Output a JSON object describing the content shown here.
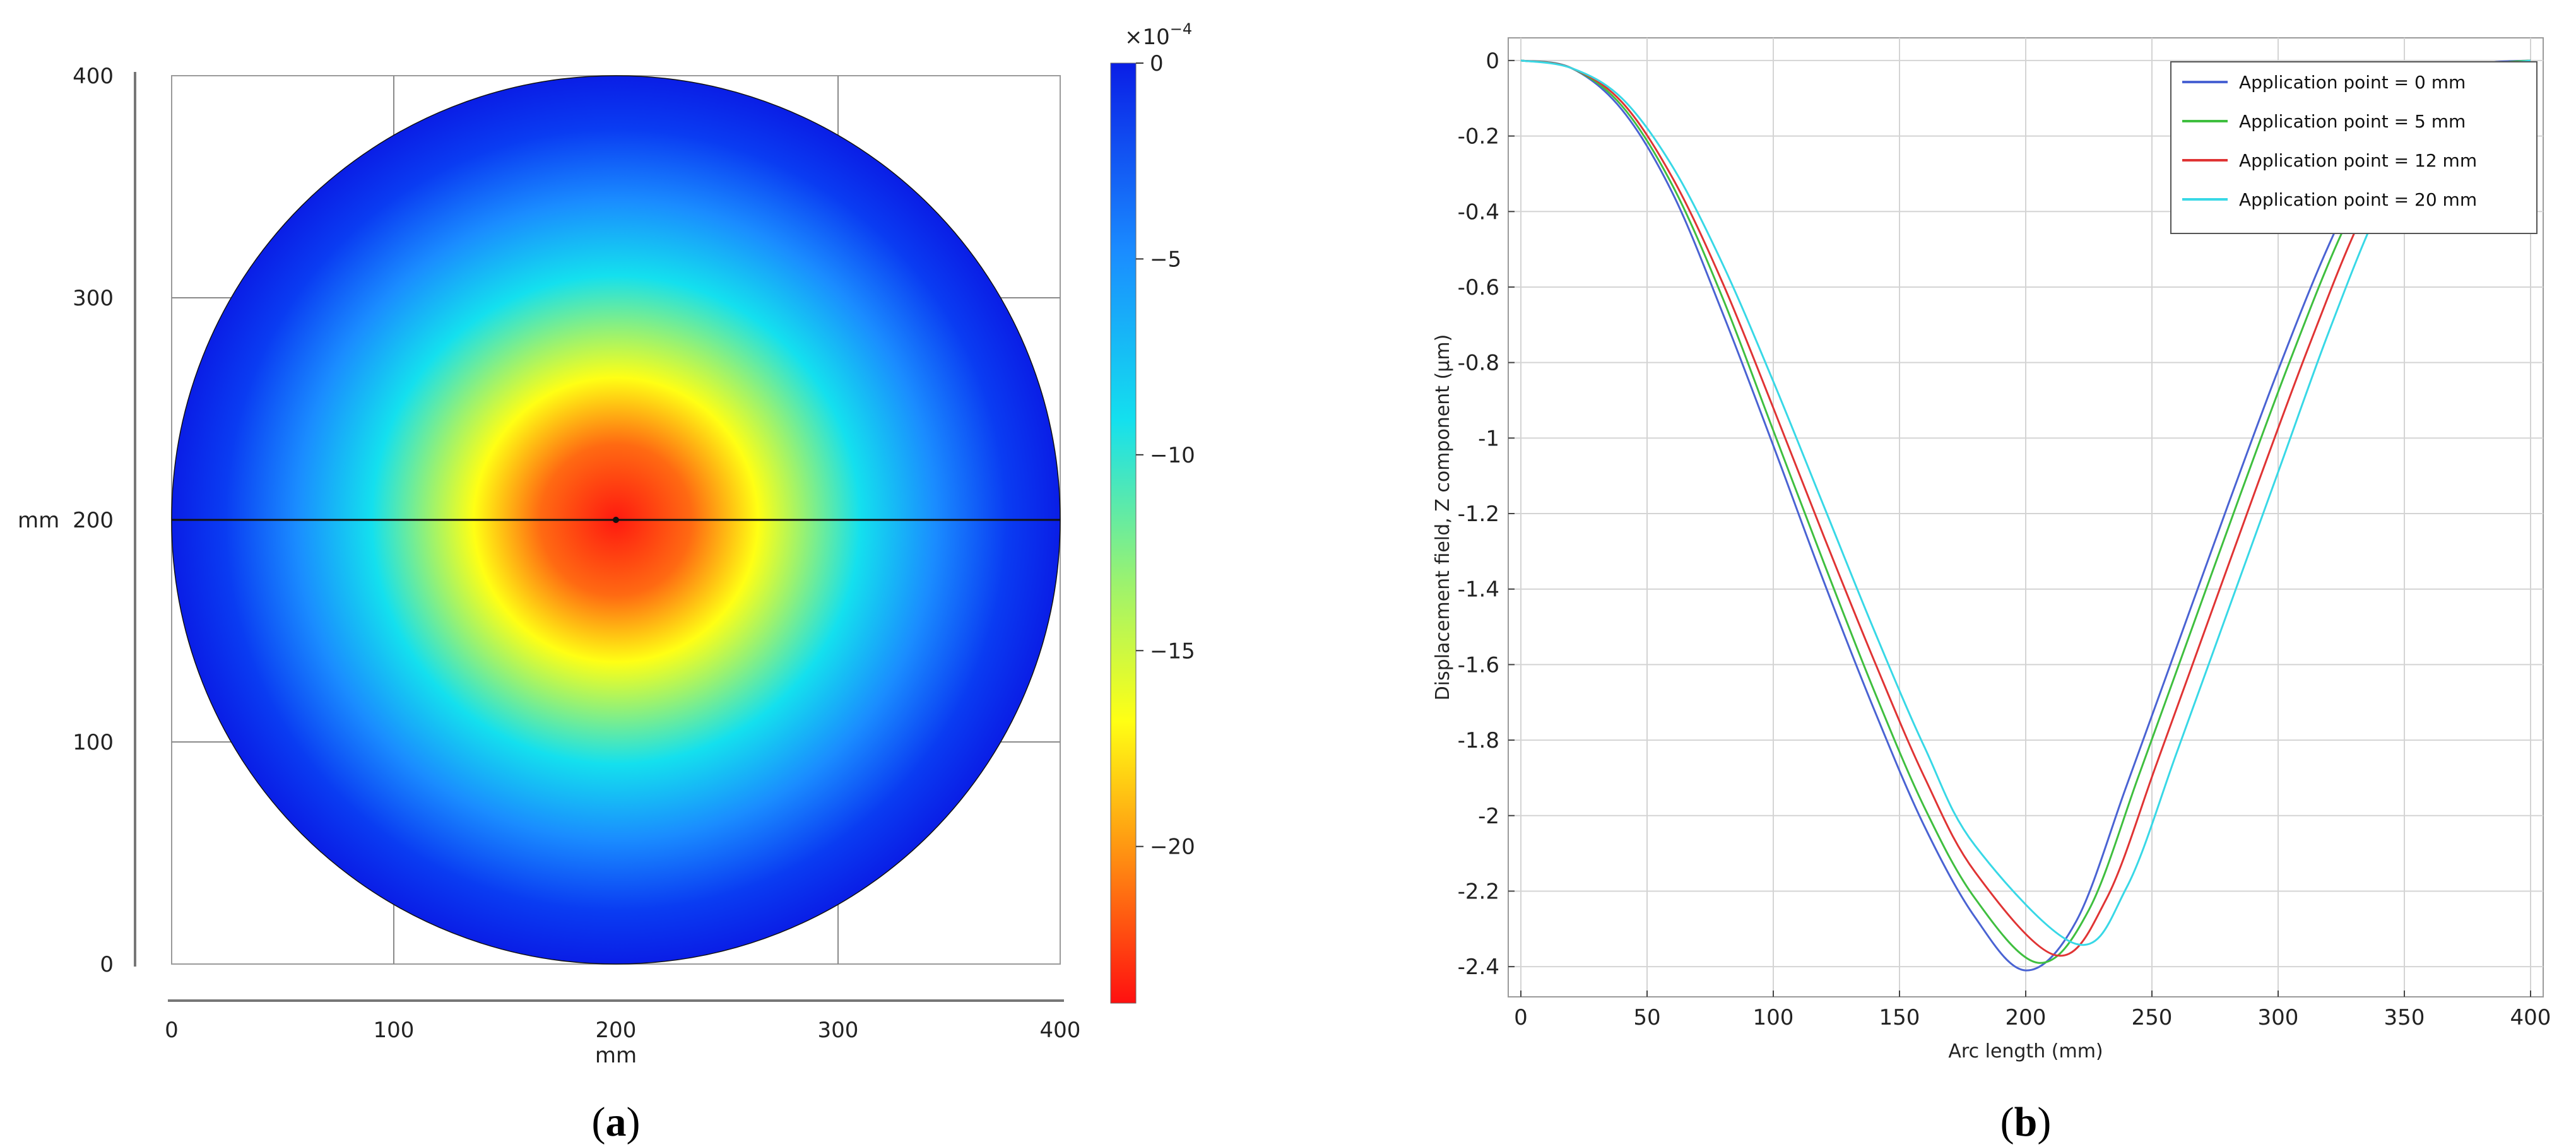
{
  "chart_data": [
    {
      "panel": "(a)",
      "type": "heatmap",
      "xlabel": "mm",
      "ylabel": "mm",
      "xlim": [
        0,
        400
      ],
      "ylim": [
        0,
        400
      ],
      "x_ticks": [
        "0",
        "100",
        "200",
        "300",
        "400"
      ],
      "y_ticks": [
        "0",
        "100",
        "200",
        "300",
        "400"
      ],
      "colorbar": {
        "multiplier": "×10",
        "exponent": "−4",
        "range": [
          -24,
          0
        ],
        "ticks": [
          {
            "value": 0,
            "label": "0"
          },
          {
            "value": -5,
            "label": "−5"
          },
          {
            "value": -10,
            "label": "−10"
          },
          {
            "value": -15,
            "label": "−15"
          },
          {
            "value": -20,
            "label": "−20"
          }
        ]
      },
      "field": {
        "shape": "circle",
        "center": [
          200,
          200
        ],
        "radius": 200,
        "center_value": -24,
        "edge_value": 0
      },
      "cut_line": {
        "y": 200,
        "x_range": [
          0,
          400
        ]
      },
      "grid": true
    },
    {
      "panel": "(b)",
      "type": "line",
      "xlabel": "Arc length (mm)",
      "ylabel": "Displacement field, Z component (µm)",
      "xlim": [
        -5,
        405
      ],
      "ylim": [
        -2.48,
        0.06
      ],
      "x_ticks": [
        {
          "value": 0,
          "label": "0"
        },
        {
          "value": 50,
          "label": "50"
        },
        {
          "value": 100,
          "label": "100"
        },
        {
          "value": 150,
          "label": "150"
        },
        {
          "value": 200,
          "label": "200"
        },
        {
          "value": 250,
          "label": "250"
        },
        {
          "value": 300,
          "label": "300"
        },
        {
          "value": 350,
          "label": "350"
        },
        {
          "value": 400,
          "label": "400"
        }
      ],
      "y_ticks": [
        {
          "value": 0,
          "label": "0"
        },
        {
          "value": -0.2,
          "label": "-0.2"
        },
        {
          "value": -0.4,
          "label": "-0.4"
        },
        {
          "value": -0.6,
          "label": "-0.6"
        },
        {
          "value": -0.8,
          "label": "-0.8"
        },
        {
          "value": -1,
          "label": "-1"
        },
        {
          "value": -1.2,
          "label": "-1.2"
        },
        {
          "value": -1.4,
          "label": "-1.4"
        },
        {
          "value": -1.6,
          "label": "-1.6"
        },
        {
          "value": -1.8,
          "label": "-1.8"
        },
        {
          "value": -2,
          "label": "-2"
        },
        {
          "value": -2.2,
          "label": "-2.2"
        },
        {
          "value": -2.4,
          "label": "-2.4"
        }
      ],
      "grid": true,
      "legend_position": "top-right",
      "series": [
        {
          "name": "Application point = 0 mm",
          "color": "#4a63d3",
          "min_x": 200,
          "min_y": -2.41,
          "x": [
            0,
            20,
            40,
            60,
            80,
            100,
            120,
            140,
            160,
            180,
            200,
            220,
            240,
            260,
            280,
            300,
            320,
            340,
            360,
            380,
            400
          ],
          "y": [
            0,
            -0.02,
            -0.13,
            -0.35,
            -0.67,
            -1.02,
            -1.38,
            -1.72,
            -2.03,
            -2.27,
            -2.41,
            -2.28,
            -1.92,
            -1.55,
            -1.18,
            -0.82,
            -0.49,
            -0.22,
            -0.06,
            -0.01,
            0
          ]
        },
        {
          "name": "Application point = 5 mm",
          "color": "#3fbf3f",
          "min_x": 205,
          "min_y": -2.39,
          "x": [
            0,
            20,
            40,
            60,
            80,
            100,
            120,
            140,
            160,
            180,
            205,
            225,
            245,
            265,
            285,
            305,
            325,
            345,
            365,
            385,
            400
          ],
          "y": [
            0,
            -0.02,
            -0.12,
            -0.33,
            -0.63,
            -0.98,
            -1.33,
            -1.67,
            -1.98,
            -2.22,
            -2.39,
            -2.25,
            -1.89,
            -1.52,
            -1.15,
            -0.79,
            -0.46,
            -0.2,
            -0.05,
            -0.01,
            0
          ]
        },
        {
          "name": "Application point = 12 mm",
          "color": "#e03434",
          "min_x": 212,
          "min_y": -2.37,
          "x": [
            0,
            20,
            40,
            60,
            80,
            100,
            120,
            140,
            160,
            180,
            212,
            232,
            252,
            272,
            292,
            312,
            332,
            352,
            372,
            392,
            400
          ],
          "y": [
            0,
            -0.02,
            -0.11,
            -0.31,
            -0.59,
            -0.92,
            -1.26,
            -1.59,
            -1.9,
            -2.15,
            -2.37,
            -2.22,
            -1.86,
            -1.49,
            -1.12,
            -0.76,
            -0.43,
            -0.18,
            -0.04,
            -0.01,
            0
          ]
        },
        {
          "name": "Application point = 20 mm",
          "color": "#38d8e6",
          "min_x": 220,
          "min_y": -2.34,
          "x": [
            0,
            20,
            40,
            60,
            80,
            100,
            120,
            140,
            160,
            180,
            220,
            240,
            260,
            280,
            300,
            320,
            340,
            360,
            380,
            400
          ],
          "y": [
            0,
            -0.02,
            -0.1,
            -0.28,
            -0.54,
            -0.85,
            -1.18,
            -1.51,
            -1.82,
            -2.08,
            -2.34,
            -2.19,
            -1.83,
            -1.46,
            -1.09,
            -0.72,
            -0.39,
            -0.15,
            -0.03,
            0
          ]
        }
      ]
    }
  ]
}
